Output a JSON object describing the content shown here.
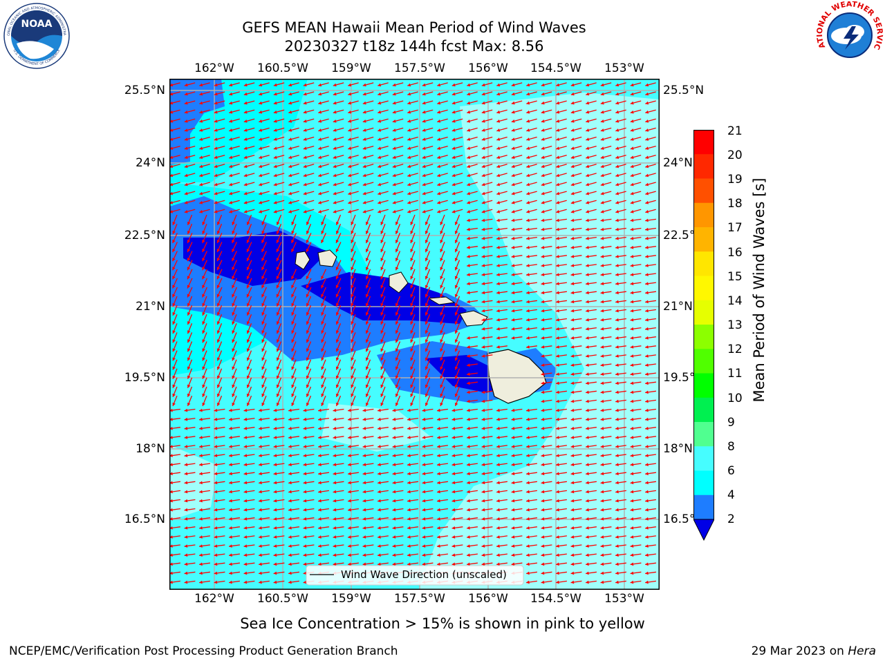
{
  "header": {
    "title_line1": "GEFS MEAN Hawaii Mean Period of Wind Waves",
    "title_line2": "20230327 t18z 144h fcst   Max: 8.56"
  },
  "logos": {
    "noaa": {
      "text": "NOAA",
      "ring_top": "NATIONAL OCEANIC AND ATMOSPHERIC ADMINISTRATION",
      "ring_bottom": "U.S. DEPARTMENT OF COMMERCE"
    },
    "nws": {
      "ring": "NATIONAL WEATHER SERVICE"
    }
  },
  "map": {
    "lon_labels": [
      "162°W",
      "160.5°W",
      "159°W",
      "157.5°W",
      "156°W",
      "154.5°W",
      "153°W"
    ],
    "lat_labels": [
      "25.5°N",
      "24°N",
      "22.5°N",
      "21°N",
      "19.5°N",
      "18°N",
      "16.5°N"
    ],
    "legend_label": "Wind Wave Direction (unscaled)",
    "colors": {
      "level_2_4": "#1e7dff",
      "level_deep": "#0000e6",
      "level_4_6": "#00ffff",
      "level_6_8": "#46fdff",
      "level_8_9": "#a0fffb",
      "land": "#efeedd",
      "arrow": "#ff0000",
      "grid": "#b0b0b0"
    }
  },
  "colorbar": {
    "label": "Mean Period of Wind Waves [s]",
    "ticks": [
      "21",
      "20",
      "19",
      "18",
      "17",
      "16",
      "15",
      "14",
      "13",
      "12",
      "11",
      "10",
      "9",
      "8",
      "6",
      "4",
      "2"
    ],
    "segment_colors": [
      "#ff0000",
      "#ff2800",
      "#ff5000",
      "#ff7800",
      "#ff9600",
      "#ffb400",
      "#ffe600",
      "#fff800",
      "#e6ff00",
      "#c8ff00",
      "#8cff00",
      "#50ff00",
      "#00ff00",
      "#00f050",
      "#50ff90",
      "#a0fffb",
      "#46fdff",
      "#00ffff",
      "#1e7dff"
    ],
    "under_color": "#0000e6"
  },
  "footer": {
    "center": "Sea Ice Concentration > 15% is shown in pink to yellow",
    "left": "NCEP/EMC/Verification Post Processing Product Generation Branch",
    "right_date": "29 Mar 2023 on ",
    "right_host": "Hera"
  }
}
